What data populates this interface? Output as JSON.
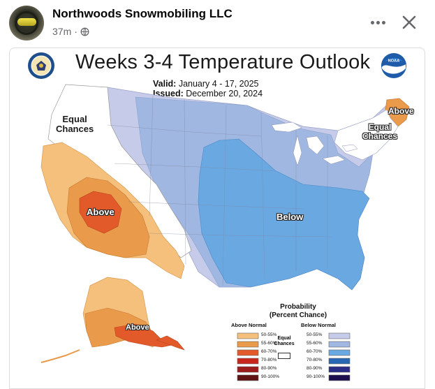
{
  "post": {
    "author": "Northwoods Snowmobiling LLC",
    "time": "37m",
    "separator": "·"
  },
  "map": {
    "title": "Weeks 3-4 Temperature Outlook",
    "valid_label": "Valid:",
    "valid_value": "January 4 - 17, 2025",
    "issued_label": "Issued:",
    "issued_value": "December 20, 2024",
    "noaa_logo_text": "NOAA",
    "regions": {
      "west_equal": "Equal\nChances",
      "southwest_above": "Above",
      "east_below": "Below",
      "maine_above": "Above",
      "northeast_equal": "Equal\nChances",
      "alaska_above": "Above"
    },
    "colors": {
      "above_50_55": "#f5c07b",
      "above_55_60": "#e99a4a",
      "above_60_70": "#e35a2a",
      "above_70_80": "#c8281c",
      "above_80_90": "#9c1b1b",
      "above_90_100": "#611212",
      "below_50_55": "#c5cbe8",
      "below_55_60": "#9fb7e1",
      "below_60_70": "#6aa8e2",
      "below_70_80": "#2767b3",
      "below_80_90": "#2b2c86",
      "below_90_100": "#1d0f4d",
      "background": "#ffffff"
    }
  },
  "legend": {
    "title": "Probability\n(Percent Chance)",
    "above_head": "Above Normal",
    "below_head": "Below Normal",
    "equal_label": "Equal\nChances",
    "rows": [
      "50-55%",
      "55-60%",
      "60-70%",
      "70-80%",
      "80-90%",
      "90-100%"
    ]
  },
  "icons": {
    "globe": "globe-icon",
    "more": "more-options-icon",
    "close": "close-icon"
  }
}
